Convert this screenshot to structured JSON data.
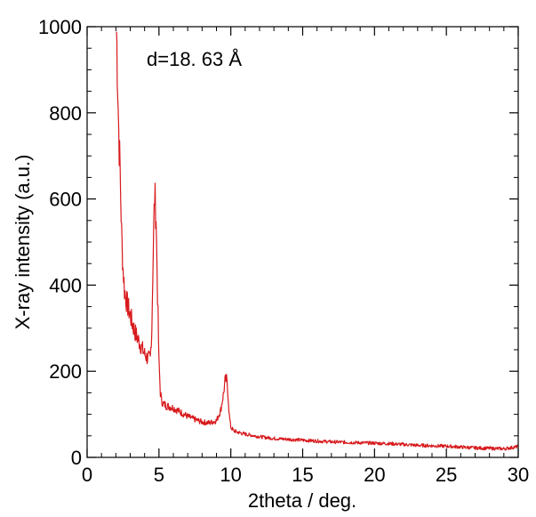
{
  "chart_data": {
    "type": "line",
    "title": "",
    "xlabel": "2theta / deg.",
    "ylabel": "X-ray intensity (a.u.)",
    "xlim": [
      0,
      30
    ],
    "ylim": [
      0,
      1000
    ],
    "xticks": [
      0,
      5,
      10,
      15,
      20,
      25,
      30
    ],
    "yticks": [
      0,
      200,
      400,
      600,
      800,
      1000
    ],
    "minor_xticks": [
      1,
      2,
      3,
      4,
      6,
      7,
      8,
      9,
      11,
      12,
      13,
      14,
      16,
      17,
      18,
      19,
      21,
      22,
      23,
      24,
      26,
      27,
      28,
      29
    ],
    "minor_yticks": [
      50,
      100,
      150,
      250,
      300,
      350,
      450,
      500,
      550,
      650,
      700,
      750,
      850,
      900,
      950
    ],
    "grid": false,
    "legend": "none",
    "annotation": "d=18. 63 Å",
    "line_color": "#d7191c",
    "series": [
      {
        "name": "",
        "x": [
          2.05,
          2.1,
          2.2,
          2.3,
          2.4,
          2.5,
          2.6,
          2.7,
          2.8,
          3.0,
          3.2,
          3.4,
          3.6,
          3.8,
          4.0,
          4.2,
          4.4,
          4.5,
          4.6,
          4.7,
          4.8,
          4.9,
          5.0,
          5.1,
          5.2,
          5.3,
          5.5,
          6.0,
          6.5,
          7.0,
          7.5,
          8.0,
          8.5,
          9.0,
          9.3,
          9.5,
          9.6,
          9.7,
          9.8,
          9.9,
          10.0,
          10.2,
          10.5,
          11.0,
          12.0,
          13.0,
          14.0,
          15.0,
          16.0,
          17.0,
          18.0,
          19.0,
          20.0,
          21.0,
          22.0,
          23.0,
          24.0,
          25.0,
          26.0,
          27.0,
          28.0,
          29.0,
          30.0
        ],
        "y": [
          990,
          920,
          760,
          660,
          520,
          440,
          390,
          370,
          355,
          330,
          305,
          285,
          270,
          255,
          240,
          230,
          230,
          300,
          480,
          610,
          560,
          380,
          220,
          150,
          130,
          125,
          120,
          115,
          105,
          95,
          88,
          82,
          80,
          85,
          110,
          150,
          178,
          180,
          150,
          95,
          70,
          62,
          58,
          54,
          48,
          44,
          42,
          40,
          38,
          36,
          35,
          34,
          33,
          32,
          30,
          28,
          27,
          26,
          24,
          22,
          21,
          20,
          25
        ]
      }
    ]
  }
}
